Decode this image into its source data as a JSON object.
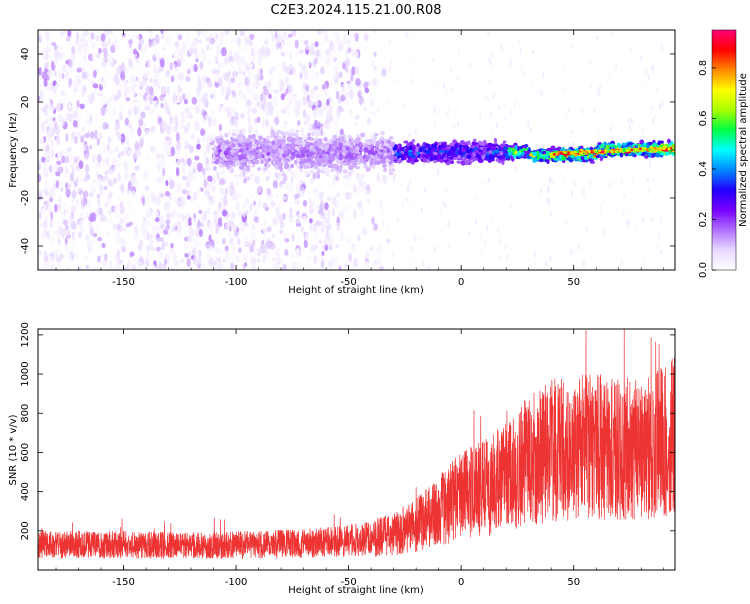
{
  "figure": {
    "title": "C2E3.2024.115.21.00.R08"
  },
  "colors": {
    "snr_line": "#ee3333",
    "axis": "#000000",
    "colormap": [
      "#ffffff",
      "#e8d8ff",
      "#b070ff",
      "#7700ff",
      "#2200ff",
      "#0088ff",
      "#00ffff",
      "#00ff44",
      "#aaff00",
      "#ffff00",
      "#ff8800",
      "#ff0000",
      "#ff0077"
    ]
  },
  "chart_data": [
    {
      "type": "heatmap",
      "title": "",
      "xlabel": "Height of straight line (km)",
      "ylabel": "Frequency (Hz)",
      "xlim": [
        -188,
        95
      ],
      "ylim": [
        -50,
        50
      ],
      "xticks": [
        -150,
        -100,
        -50,
        0,
        50
      ],
      "yticks": [
        -40,
        -20,
        0,
        20,
        40
      ],
      "colorbar": {
        "label": "Normalized spectral amplitude",
        "range": [
          0.0,
          0.95
        ],
        "ticks": [
          0.0,
          0.2,
          0.4,
          0.6,
          0.8
        ]
      },
      "description_of_pattern": [
        {
          "x_range": [
            -188,
            -40
          ],
          "freq_range": [
            -50,
            50
          ],
          "amplitude": "scattered 0.0-0.15"
        },
        {
          "x_range": [
            -110,
            -30
          ],
          "freq_range": [
            -12,
            12
          ],
          "amplitude": "0.1-0.2"
        },
        {
          "x_range": [
            -30,
            20
          ],
          "freq_range": [
            -6,
            6
          ],
          "amplitude": "0.2-0.45"
        },
        {
          "x_range": [
            20,
            95
          ],
          "freq_range": [
            -4,
            2
          ],
          "amplitude": "0.5-0.9"
        }
      ]
    },
    {
      "type": "line",
      "title": "",
      "xlabel": "Height of straight line (km)",
      "ylabel": "SNR (10 * v/v)",
      "xlim": [
        -188,
        95
      ],
      "ylim": [
        0,
        1230
      ],
      "xticks": [
        -150,
        -100,
        -50,
        0,
        50
      ],
      "yticks": [
        200,
        400,
        600,
        800,
        1000,
        1200
      ],
      "series": [
        {
          "x": [
            -188,
            -170,
            -150,
            -130,
            -110,
            -90,
            -70,
            -55,
            -40,
            -30,
            -20,
            -10,
            0,
            10,
            20,
            30,
            40,
            50,
            60,
            70,
            80,
            90,
            95
          ],
          "values": [
            130,
            130,
            130,
            125,
            125,
            130,
            135,
            145,
            160,
            185,
            230,
            300,
            380,
            420,
            470,
            560,
            610,
            620,
            630,
            640,
            600,
            650,
            700
          ]
        }
      ]
    }
  ]
}
